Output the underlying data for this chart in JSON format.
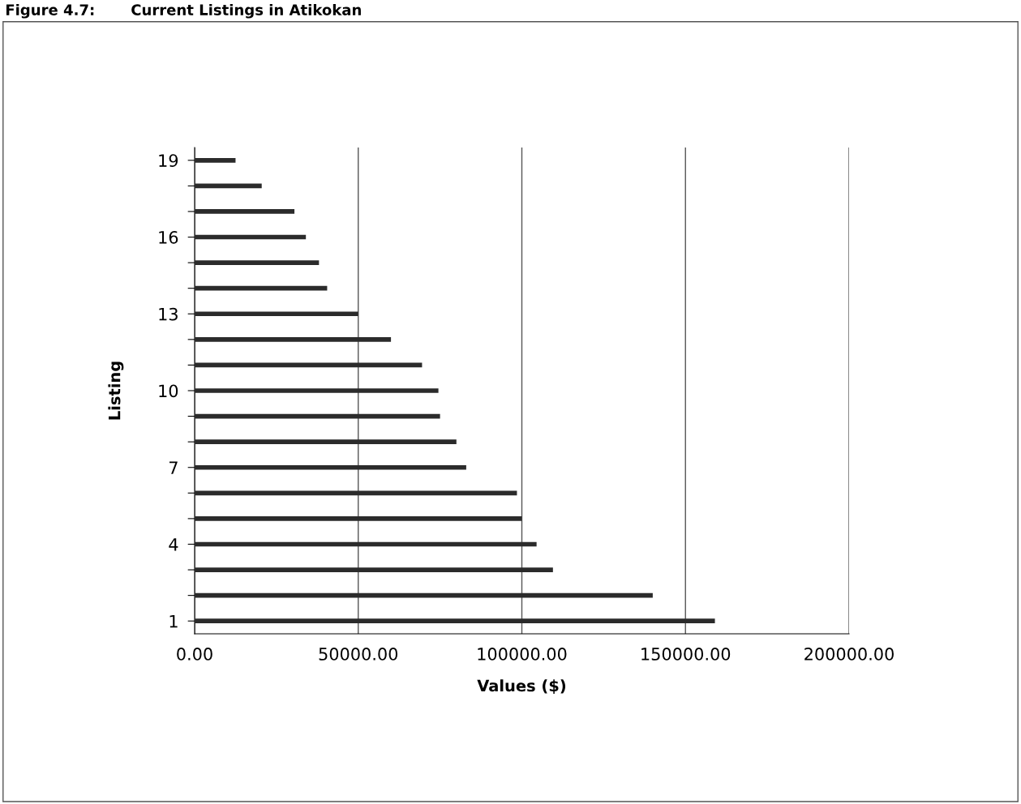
{
  "chart_data": {
    "type": "bar",
    "orientation": "horizontal",
    "title": "Figure 4.7:       Current Listings in Atikokan",
    "categories": [
      "19",
      null,
      null,
      "16",
      null,
      null,
      "13",
      null,
      null,
      "10",
      null,
      null,
      "7",
      null,
      null,
      "4",
      null,
      null,
      "1"
    ],
    "values": [
      12500,
      20500,
      30500,
      34000,
      38000,
      40500,
      50000,
      60000,
      69500,
      74500,
      75000,
      80000,
      83000,
      98500,
      100000,
      104500,
      109500,
      140000,
      159000
    ],
    "color": "#2b2b2b",
    "xlim": [
      0,
      200000
    ],
    "xticks": [
      {
        "value": 0,
        "label": "0.00"
      },
      {
        "value": 50000,
        "label": "50000.00"
      },
      {
        "value": 100000,
        "label": "100000.00"
      },
      {
        "value": 150000,
        "label": "150000.00"
      },
      {
        "value": 200000,
        "label": "200000.00"
      }
    ],
    "xlabel": "Values ($)",
    "ylabel": "Listing",
    "grid": "x",
    "legend": false
  }
}
